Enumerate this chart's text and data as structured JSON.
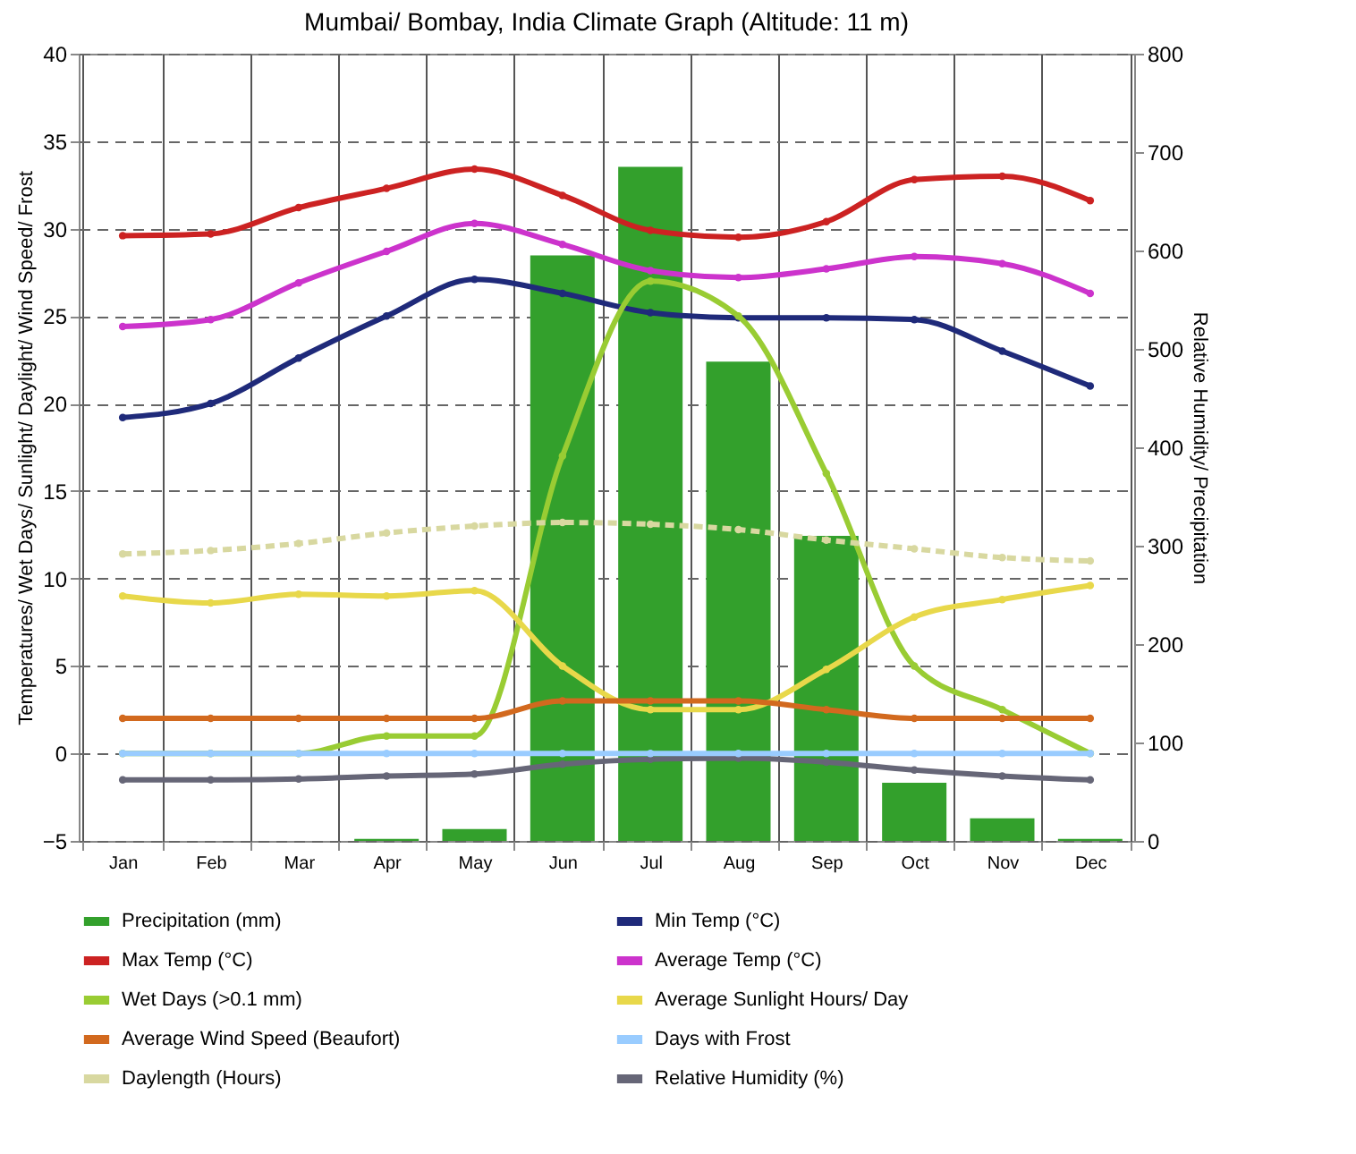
{
  "chart_data": {
    "type": "line",
    "title": "Mumbai/ Bombay, India Climate Graph (Altitude: 11 m)",
    "ylabel": "Temperatures/ Wet Days/ Sunlight/ Daylight/ Wind Speed/ Frost",
    "y2label": "Relative Humidity/ Precipitation",
    "categories": [
      "Jan",
      "Feb",
      "Mar",
      "Apr",
      "May",
      "Jun",
      "Jul",
      "Aug",
      "Sep",
      "Oct",
      "Nov",
      "Dec"
    ],
    "ylim": [
      -5,
      40
    ],
    "yticks": [
      -5,
      0,
      5,
      10,
      15,
      20,
      25,
      30,
      35,
      40
    ],
    "y2lim": [
      0,
      800
    ],
    "y2ticks": [
      0,
      100,
      200,
      300,
      400,
      500,
      600,
      700,
      800
    ],
    "grid": true,
    "legend": "bottom",
    "marker": "circle",
    "series": [
      {
        "name": "Precipitation (mm)",
        "type": "bar",
        "axis": "y2",
        "color": "#33a02c",
        "values": [
          0,
          0,
          0,
          2,
          12,
          595,
          685,
          487,
          310,
          59,
          23,
          2
        ]
      },
      {
        "name": "Min Temp (°C)",
        "color": "#1f2a7a",
        "values": [
          19.2,
          20.0,
          22.6,
          25.0,
          27.1,
          26.3,
          25.2,
          24.9,
          24.9,
          24.8,
          23.0,
          21.0
        ]
      },
      {
        "name": "Max Temp (°C)",
        "color": "#cc2222",
        "values": [
          29.6,
          29.7,
          31.2,
          32.3,
          33.4,
          31.9,
          29.9,
          29.5,
          30.4,
          32.8,
          33.0,
          31.6
        ]
      },
      {
        "name": "Average Temp (°C)",
        "color": "#cc33cc",
        "values": [
          24.4,
          24.8,
          26.9,
          28.7,
          30.3,
          29.1,
          27.6,
          27.2,
          27.7,
          28.4,
          28.0,
          26.3
        ]
      },
      {
        "name": "Wet Days (>0.1 mm)",
        "color": "#99cc33",
        "values": [
          0,
          0,
          0,
          1,
          1,
          17,
          27,
          25,
          16,
          5,
          2.5,
          0
        ]
      },
      {
        "name": "Average Sunlight Hours/ Day",
        "color": "#e8d84a",
        "values": [
          9.0,
          8.6,
          9.1,
          9.0,
          9.3,
          5.0,
          2.5,
          2.5,
          4.8,
          7.8,
          8.8,
          9.6
        ]
      },
      {
        "name": "Average Wind Speed (Beaufort)",
        "color": "#d2691e",
        "values": [
          2,
          2,
          2,
          2,
          2,
          3,
          3,
          3,
          2.5,
          2,
          2,
          2
        ]
      },
      {
        "name": "Days with Frost",
        "color": "#99ccff",
        "values": [
          0,
          0,
          0,
          0,
          0,
          0,
          0,
          0,
          0,
          0,
          0,
          0
        ]
      },
      {
        "name": "Daylength (Hours)",
        "color": "#d8d8a0",
        "line_style": "dashed",
        "values": [
          11.4,
          11.6,
          12.0,
          12.6,
          13.0,
          13.2,
          13.1,
          12.8,
          12.2,
          11.7,
          11.2,
          11.0
        ]
      },
      {
        "name": "Relative Humidity (%)",
        "axis": "y2",
        "color": "#666677",
        "values": [
          62,
          62,
          63,
          66,
          68,
          78,
          83,
          84,
          80,
          72,
          66,
          62
        ]
      }
    ]
  }
}
